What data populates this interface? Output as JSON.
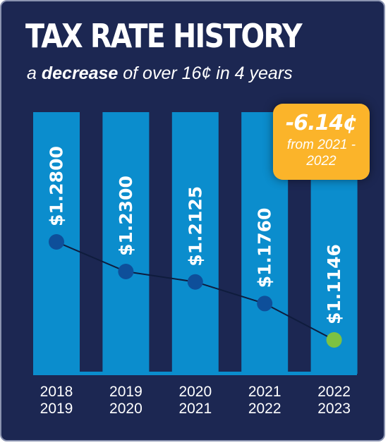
{
  "header": {
    "title": "TAX RATE HISTORY",
    "subtitle_before": "a ",
    "subtitle_emphasis": "decrease",
    "subtitle_after": " of over 16¢ in 4 years"
  },
  "callout": {
    "value": "-6.14¢",
    "note": "from 2021 - 2022"
  },
  "colors": {
    "background": "#1c2752",
    "bar": "#0b8dcd",
    "dot": "#0e4f9a",
    "dot_highlight": "#7dc242",
    "line": "#0f1c3d",
    "callout": "#fbb42a"
  },
  "chart_data": {
    "type": "bar",
    "title": "TAX RATE HISTORY",
    "categories": [
      [
        "2018",
        "2019"
      ],
      [
        "2019",
        "2020"
      ],
      [
        "2020",
        "2021"
      ],
      [
        "2021",
        "2022"
      ],
      [
        "2022",
        "2023"
      ]
    ],
    "values": [
      1.28,
      1.23,
      1.2125,
      1.176,
      1.1146
    ],
    "value_labels": [
      "$1.2800",
      "$1.2300",
      "$1.2125",
      "$1.1760",
      "$1.1146"
    ],
    "overlay": "line with markers connecting the values",
    "highlight_index": 4,
    "grid": false,
    "legend": "none"
  }
}
